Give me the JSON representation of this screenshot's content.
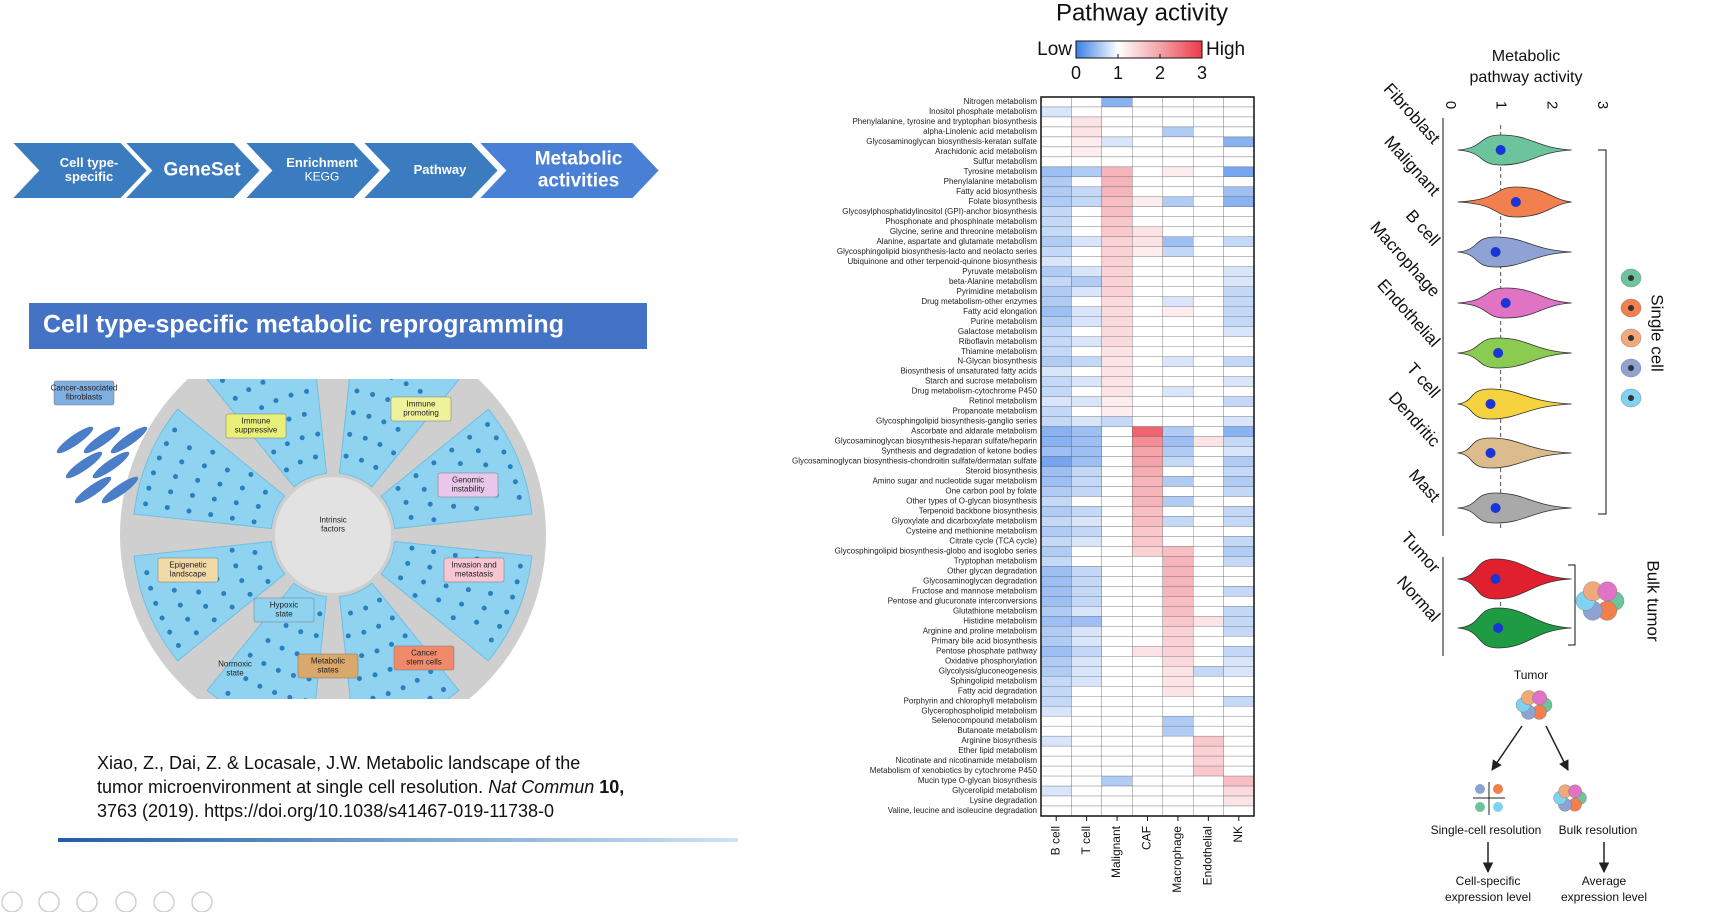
{
  "process_steps": [
    [
      "Cell type-",
      "specific"
    ],
    [
      "GeneSet"
    ],
    [
      "Enrichment",
      "KEGG"
    ],
    [
      "Pathway"
    ],
    [
      "Metabolic",
      "activities"
    ]
  ],
  "banner": "Cell type-specific metabolic reprogramming",
  "illustration": {
    "labels": [
      [
        "Cancer-associated",
        "fibroblasts"
      ],
      [
        "Immune",
        "suppressive"
      ],
      [
        "Immune",
        "promoting"
      ],
      [
        "Genomic",
        "instability"
      ],
      [
        "Intrinsic",
        "factors"
      ],
      [
        "Invasion and",
        "metastasis"
      ],
      [
        "Epigenetic",
        "landscape"
      ],
      [
        "Hypoxic",
        "state"
      ],
      [
        "Normoxic",
        "state"
      ],
      [
        "Metabolic",
        "states"
      ],
      [
        "Cancer",
        "stem cells"
      ]
    ]
  },
  "citation": {
    "line_1": "Xiao, Z., Dai, Z. & Locasale, J.W. Metabolic landscape of the",
    "line_2": "tumor microenvironment at single cell resolution.",
    "journal": "Nat Commun",
    "volume": "10,",
    "line_3": "3763 (2019). https://doi.org/10.1038/s41467-019-11738-0"
  },
  "heatmap": {
    "type": "heatmap",
    "title": "Pathway activity",
    "legend_low": "Low",
    "legend_high": "High",
    "clim": [
      0,
      3
    ],
    "cticks": [
      0,
      1,
      2,
      3
    ],
    "colors": [
      "#3a7fe6",
      "#ffffff",
      "#f4a3aa",
      "#ee3a48"
    ],
    "columns": [
      "B cell",
      "T cell",
      "Malignant",
      "CAF",
      "Macrophage",
      "Endothelial",
      "NK"
    ],
    "rows": [
      "Nitrogen metabolism",
      "Inositol phosphate metabolism",
      "Phenylalanine, tyrosine and tryptophan biosynthesis",
      "alpha-Linolenic acid metabolism",
      "Glycosaminoglycan biosynthesis-keratan sulfate",
      "Arachidonic acid metabolism",
      "Sulfur metabolism",
      "Tyrosine metabolism",
      "Phenylalanine metabolism",
      "Fatty acid biosynthesis",
      "Folate biosynthesis",
      "Glycosylphosphatidylinositol (GPI)-anchor biosynthesis",
      "Phosphonate and phosphinate metabolism",
      "Glycine, serine and threonine metabolism",
      "Alanine, aspartate and glutamate metabolism",
      "Glycosphingolipid biosynthesis-lacto and neolacto series",
      "Ubiquinone and other terpenoid-quinone biosynthesis",
      "Pyruvate metabolism",
      "beta-Alanine metabolism",
      "Pyrimidine metabolism",
      "Drug metabolism-other enzymes",
      "Fatty acid elongation",
      "Purine metabolism",
      "Galactose metabolism",
      "Riboflavin metabolism",
      "Thiamine metabolism",
      "N-Glycan biosynthesis",
      "Biosynthesis of unsaturated fatty acids",
      "Starch and sucrose metabolism",
      "Drug metabolism-cytochrome P450",
      "Retinol metabolism",
      "Propanoate metabolism",
      "Glycosphingolipid biosynthesis-ganglio series",
      "Ascorbate and aldarate metabolism",
      "Glycosaminoglycan biosynthesis-heparan sulfate/heparin",
      "Synthesis and degradation of ketone bodies",
      "Glycosaminoglycan biosynthesis-chondroitin sulfate/dermatan sulfate",
      "Steroid biosynthesis",
      "Amino sugar and nucleotide sugar metabolism",
      "One carbon pool by folate",
      "Other types of O-glycan biosynthesis",
      "Terpenoid backbone biosynthesis",
      "Glyoxylate and dicarboxylate metabolism",
      "Cysteine and methionine metabolism",
      "Citrate cycle (TCA cycle)",
      "Glycosphingolipid biosynthesis-globo and isoglobo series",
      "Tryptophan metabolism",
      "Other glycan degradation",
      "Glycosaminoglycan degradation",
      "Fructose and mannose metabolism",
      "Pentose and glucuronate interconversions",
      "Glutathione metabolism",
      "Histidine metabolism",
      "Arginine and proline metabolism",
      "Primary bile acid biosynthesis",
      "Pentose phosphate pathway",
      "Oxidative phosphorylation",
      "Glycolysis/gluconeogenesis",
      "Sphingolipid metabolism",
      "Fatty acid degradation",
      "Porphyrin and chlorophyll metabolism",
      "Glycerophospholipid metabolism",
      "Selenocompound metabolism",
      "Butanoate metabolism",
      "Arginine biosynthesis",
      "Ether lipid metabolism",
      "Nicotinate and nicotinamide metabolism",
      "Metabolism of xenobiotics by cytochrome P450",
      "Mucin type O-glycan biosynthesis",
      "Glycerolipid metabolism",
      "Lysine degradation",
      "Valine, leucine and isoleucine degradation"
    ],
    "values": [
      [
        1,
        1,
        0.4,
        1,
        1,
        1,
        1
      ],
      [
        0.8,
        1,
        1,
        1,
        1,
        1,
        1
      ],
      [
        1,
        1.3,
        1,
        1,
        1,
        1,
        1
      ],
      [
        1,
        1.3,
        1,
        1,
        0.6,
        1,
        1
      ],
      [
        1,
        1.2,
        0.8,
        1,
        1,
        1,
        0.4
      ],
      [
        1,
        1.2,
        1,
        1,
        1,
        1,
        1
      ],
      [
        1,
        1,
        1,
        1,
        1,
        1,
        1
      ],
      [
        0.5,
        0.6,
        1.8,
        1,
        1.2,
        1,
        0.3
      ],
      [
        0.6,
        1,
        1.8,
        1,
        1,
        1,
        1
      ],
      [
        0.6,
        0.7,
        1.8,
        1,
        1,
        1,
        0.5
      ],
      [
        0.6,
        0.7,
        1.7,
        1.2,
        0.6,
        1,
        0.4
      ],
      [
        0.7,
        1,
        1.7,
        1,
        1,
        1,
        1
      ],
      [
        0.7,
        1,
        1.6,
        1,
        1,
        1,
        1
      ],
      [
        0.7,
        1,
        1.6,
        1.3,
        1,
        1,
        1
      ],
      [
        0.6,
        0.8,
        1.5,
        1.3,
        0.5,
        1,
        0.7
      ],
      [
        0.7,
        1,
        1.5,
        1.2,
        0.7,
        1,
        1
      ],
      [
        0.8,
        1,
        1.5,
        1,
        1,
        1,
        1
      ],
      [
        0.6,
        0.8,
        1.5,
        1,
        1,
        1,
        0.8
      ],
      [
        0.7,
        0.6,
        1.5,
        1,
        1,
        1,
        0.8
      ],
      [
        0.6,
        0.8,
        1.5,
        1,
        1,
        1,
        0.7
      ],
      [
        0.6,
        1,
        1.4,
        1,
        0.8,
        1,
        0.7
      ],
      [
        0.5,
        0.8,
        1.4,
        1,
        1.2,
        1,
        0.7
      ],
      [
        0.6,
        0.8,
        1.4,
        1,
        1,
        1,
        0.7
      ],
      [
        0.7,
        1,
        1.4,
        1,
        1,
        1,
        0.8
      ],
      [
        0.7,
        0.8,
        1.4,
        1,
        1,
        1,
        1
      ],
      [
        0.7,
        1,
        1.3,
        1,
        1,
        1,
        1
      ],
      [
        0.6,
        0.7,
        1.3,
        1,
        0.8,
        1,
        0.7
      ],
      [
        0.8,
        1,
        1.3,
        1,
        1,
        1,
        1
      ],
      [
        0.7,
        0.8,
        1.3,
        1,
        1,
        1,
        0.8
      ],
      [
        0.7,
        1,
        1.3,
        1,
        0.8,
        1,
        1
      ],
      [
        0.8,
        0.8,
        1.2,
        1,
        1,
        1,
        0.7
      ],
      [
        0.7,
        1,
        1.2,
        1,
        1,
        1,
        1
      ],
      [
        0.7,
        0.8,
        0.7,
        1,
        1,
        1,
        0.8
      ],
      [
        0.4,
        0.5,
        1,
        2.6,
        0.6,
        1,
        0.4
      ],
      [
        0.4,
        0.5,
        1,
        2.2,
        0.5,
        1.3,
        0.7
      ],
      [
        0.5,
        0.5,
        1,
        2,
        0.6,
        1,
        0.8
      ],
      [
        0.3,
        0.5,
        1,
        2,
        0.7,
        1,
        0.6
      ],
      [
        0.5,
        0.7,
        1,
        1.9,
        1,
        1,
        0.7
      ],
      [
        0.5,
        0.7,
        1,
        1.8,
        0.6,
        1,
        0.6
      ],
      [
        0.6,
        0.7,
        1,
        1.8,
        1,
        1,
        0.7
      ],
      [
        0.7,
        1,
        1,
        1.8,
        0.6,
        1,
        1
      ],
      [
        0.6,
        0.7,
        1,
        1.7,
        1,
        1,
        0.7
      ],
      [
        0.7,
        0.8,
        1,
        1.7,
        0.7,
        1,
        0.7
      ],
      [
        0.6,
        0.7,
        1,
        1.6,
        1,
        1,
        1
      ],
      [
        0.7,
        0.8,
        1,
        1.6,
        1,
        1,
        0.7
      ],
      [
        0.6,
        1,
        1,
        1.5,
        1.7,
        1,
        0.6
      ],
      [
        0.7,
        1,
        1,
        1,
        1.8,
        1,
        0.7
      ],
      [
        0.5,
        0.7,
        1,
        1,
        1.8,
        1,
        1
      ],
      [
        0.5,
        0.7,
        1,
        1,
        1.8,
        1,
        1
      ],
      [
        0.5,
        0.7,
        1,
        1,
        1.8,
        1,
        0.7
      ],
      [
        0.5,
        0.7,
        1,
        1,
        1.7,
        1,
        1
      ],
      [
        0.6,
        0.8,
        1,
        1,
        1.7,
        1,
        0.7
      ],
      [
        0.5,
        0.5,
        1,
        1,
        1.6,
        1.3,
        0.7
      ],
      [
        0.6,
        0.8,
        1,
        1,
        1.5,
        1,
        0.7
      ],
      [
        0.6,
        0.8,
        1,
        1,
        1.5,
        1,
        1
      ],
      [
        0.5,
        0.7,
        1,
        1.3,
        1.5,
        1,
        0.7
      ],
      [
        0.6,
        0.8,
        1,
        1,
        1.4,
        1,
        0.8
      ],
      [
        0.6,
        0.8,
        1,
        1,
        1.3,
        0.7,
        0.8
      ],
      [
        0.7,
        0.8,
        1,
        1,
        1.3,
        1,
        1
      ],
      [
        0.7,
        1,
        1,
        1,
        1.3,
        1,
        1
      ],
      [
        0.7,
        1,
        1,
        1,
        1,
        1,
        0.7
      ],
      [
        0.8,
        1,
        1,
        1,
        1,
        1,
        1
      ],
      [
        1,
        1,
        1,
        1,
        0.6,
        1,
        1
      ],
      [
        1,
        1,
        1,
        1,
        0.6,
        1,
        1
      ],
      [
        0.8,
        1,
        1,
        1,
        1,
        1.6,
        1
      ],
      [
        1,
        1,
        1,
        1,
        1,
        1.5,
        1
      ],
      [
        1,
        1,
        1,
        1,
        1,
        1.5,
        1
      ],
      [
        1,
        1,
        1,
        1,
        1,
        1.6,
        1
      ],
      [
        1,
        1,
        0.6,
        1,
        1,
        1,
        1.7
      ],
      [
        0.8,
        1,
        1,
        1,
        1,
        1,
        1.4
      ],
      [
        1,
        1,
        1,
        1,
        1,
        1,
        1.3
      ],
      [
        1,
        1,
        1,
        1,
        1,
        1,
        1
      ]
    ]
  },
  "violin": {
    "type": "violin",
    "title": [
      "Metabolic",
      "pathway activity"
    ],
    "xlim": [
      0,
      3
    ],
    "xticks": [
      0,
      1,
      2,
      3
    ],
    "median_color": "#1a35d6",
    "single_cell": {
      "label": "Single cell",
      "categories": [
        "Fibroblast",
        "Malignant",
        "B cell",
        "Macrophage",
        "Endothelial",
        "T cell",
        "Dendritic",
        "Mast"
      ],
      "colors": [
        "#6cc49c",
        "#f2804f",
        "#8ea2d4",
        "#e073c4",
        "#8ccb52",
        "#f6d23e",
        "#dcbc8c",
        "#a9a9a9"
      ],
      "medians": [
        1,
        1.3,
        0.9,
        1.1,
        0.95,
        0.8,
        0.8,
        0.9
      ]
    },
    "bulk": {
      "label": "Bulk tumor",
      "categories": [
        "Tumor",
        "Normal"
      ],
      "colors": [
        "#e0202e",
        "#1f9b44"
      ],
      "medians": [
        0.9,
        0.95
      ]
    }
  },
  "resolution_diagram": {
    "top": "Tumor",
    "left": {
      "label": "Single-cell resolution",
      "result": [
        "Cell-specific",
        "expression level"
      ]
    },
    "right": {
      "label": "Bulk resolution",
      "result": [
        "Average",
        "expression level"
      ]
    }
  }
}
